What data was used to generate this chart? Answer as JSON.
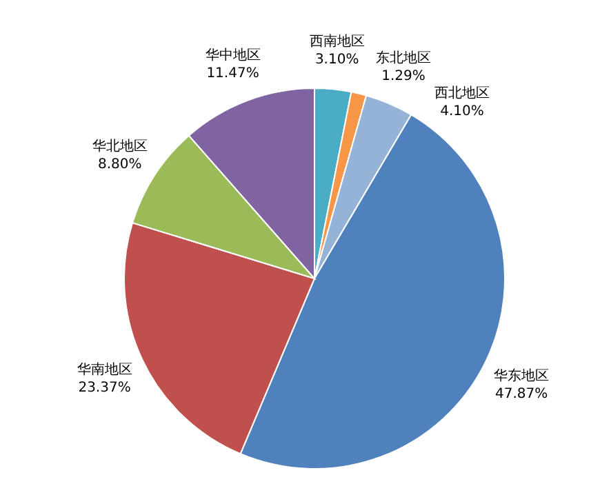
{
  "chart_data": {
    "type": "pie",
    "categories": [
      "西南地区",
      "东北地区",
      "西北地区",
      "华东地区",
      "华南地区",
      "华北地区",
      "华中地区"
    ],
    "values": [
      3.1,
      1.29,
      4.1,
      47.87,
      23.37,
      8.8,
      11.47
    ],
    "value_labels": [
      "3.10%",
      "1.29%",
      "4.10%",
      "47.87%",
      "23.37%",
      "8.80%",
      "11.47%"
    ],
    "colors": [
      "#4bacc6",
      "#f79646",
      "#95b3d7",
      "#4f81bd",
      "#c0504d",
      "#9bbb59",
      "#8064a2"
    ]
  }
}
